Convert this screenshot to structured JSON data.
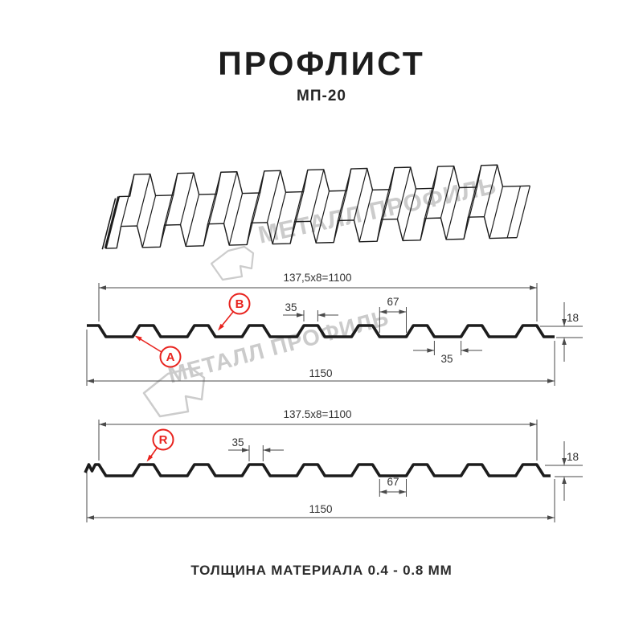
{
  "header": {
    "title": "ПРОФЛИСТ",
    "subtitle": "МП-20"
  },
  "watermark": {
    "brand": "МЕТАЛЛ ПРОФИЛЬ"
  },
  "diagram_top": {
    "pitch_dim": "137,5x8=1100",
    "rib_top_width": "35",
    "valley_width": "67",
    "height": "18",
    "valley_bottom_width": "35",
    "total_width": "1150",
    "label_a": "A",
    "label_b": "B"
  },
  "diagram_bottom": {
    "pitch_dim": "137.5x8=1100",
    "rib_top_width": "35",
    "valley_width": "67",
    "height": "18",
    "total_width": "1150",
    "label_r": "R"
  },
  "footer": {
    "note": "ТОЛЩИНА МАТЕРИАЛА 0.4 - 0.8 ММ"
  },
  "colors": {
    "line": "#1c1c1c",
    "dim": "#4a4a4a",
    "accent_red": "#e8231e",
    "watermark": "#cccccc"
  }
}
